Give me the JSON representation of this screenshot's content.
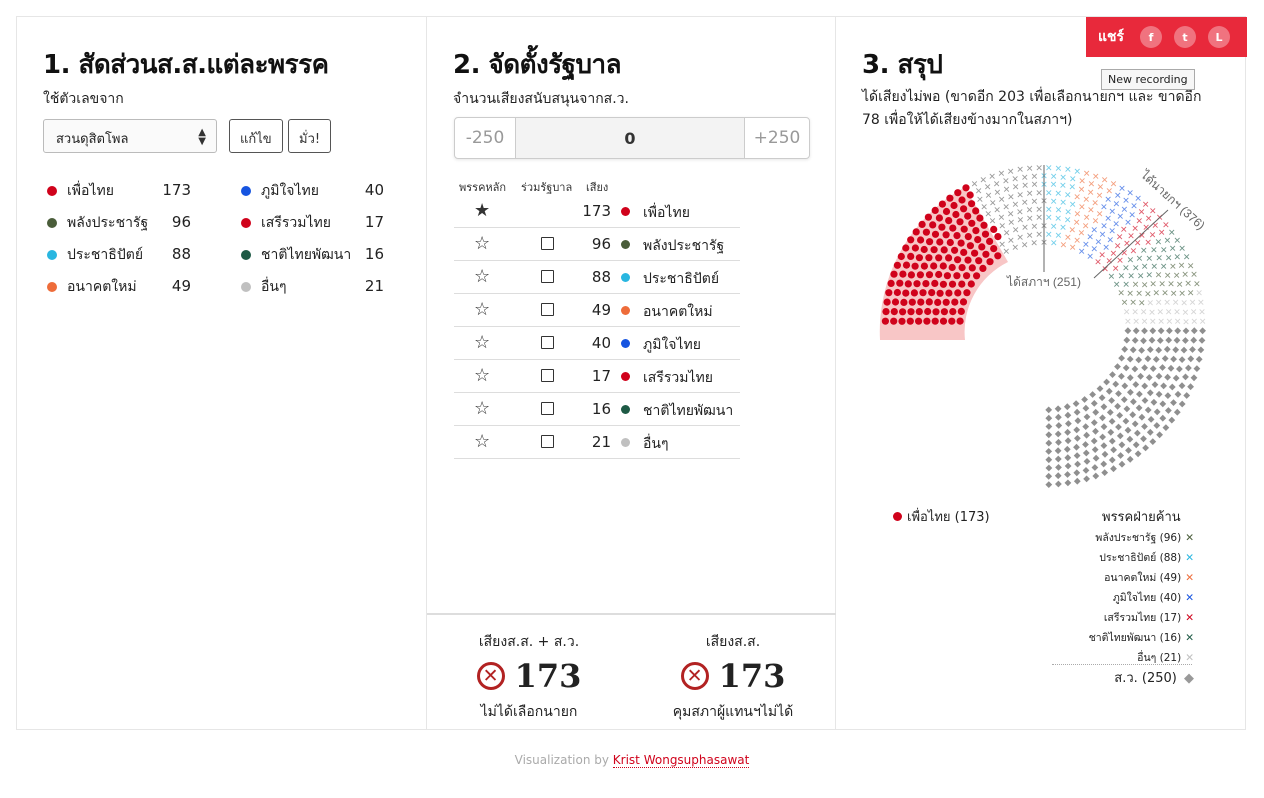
{
  "col1": {
    "title": "1. สัดส่วนส.ส.แต่ละพรรค",
    "subtitle": "ใช้ตัวเลขจาก",
    "select_value": "สวนดุสิตโพล",
    "edit_button": "แก้ไข",
    "random_button": "มั่ว!",
    "parties": [
      {
        "name": "เพื่อไทย",
        "seats": "173",
        "color": "#d0021b"
      },
      {
        "name": "พลังประชารัฐ",
        "seats": "96",
        "color": "#4a5d3a"
      },
      {
        "name": "ประชาธิปัตย์",
        "seats": "88",
        "color": "#29b6e0"
      },
      {
        "name": "อนาคตใหม่",
        "seats": "49",
        "color": "#ee6c3a"
      },
      {
        "name": "ภูมิใจไทย",
        "seats": "40",
        "color": "#1654e0"
      },
      {
        "name": "เสรีรวมไทย",
        "seats": "17",
        "color": "#d0021b"
      },
      {
        "name": "ชาติไทยพัฒนา",
        "seats": "16",
        "color": "#1e5a45"
      },
      {
        "name": "อื่นๆ",
        "seats": "21",
        "color": "#c0c0c0"
      }
    ]
  },
  "col2": {
    "title": "2. จัดตั้งรัฐบาล",
    "subtitle": "จำนวนเสียงสนับสนุนจากส.ว.",
    "stepper": {
      "minus": "-250",
      "value": "0",
      "plus": "+250"
    },
    "headers": {
      "main": "พรรคหลัก",
      "coalition": "ร่วมรัฐบาล",
      "votes": "เสียง"
    },
    "rows": [
      {
        "num": "173",
        "name": "เพื่อไทย",
        "color": "#d0021b",
        "main": true
      },
      {
        "num": "96",
        "name": "พลังประชารัฐ",
        "color": "#4a5d3a",
        "main": false
      },
      {
        "num": "88",
        "name": "ประชาธิปัตย์",
        "color": "#29b6e0",
        "main": false
      },
      {
        "num": "49",
        "name": "อนาคตใหม่",
        "color": "#ee6c3a",
        "main": false
      },
      {
        "num": "40",
        "name": "ภูมิใจไทย",
        "color": "#1654e0",
        "main": false
      },
      {
        "num": "17",
        "name": "เสรีรวมไทย",
        "color": "#d0021b",
        "main": false
      },
      {
        "num": "16",
        "name": "ชาติไทยพัฒนา",
        "color": "#1e5a45",
        "main": false
      },
      {
        "num": "21",
        "name": "อื่นๆ",
        "color": "#c0c0c0",
        "main": false
      }
    ],
    "bottom": {
      "left": {
        "title": "เสียงส.ส. + ส.ว.",
        "value": "173",
        "status": "ไม่ได้เลือกนายก"
      },
      "right": {
        "title": "เสียงส.ส.",
        "value": "173",
        "status": "คุมสภาผู้แทนฯไม่ได้"
      }
    }
  },
  "col3": {
    "title": "3. สรุป",
    "summary": "ได้เสียงไม่พอ (ขาดอีก 203 เพื่อเลือกนายกฯ และ ขาดอีก 78 เพื่อให้ได้เสียงข้างมากในสภาฯ)",
    "label_house": "ได้สภาฯ (251)",
    "label_pm": "ได้นายกฯ (376)",
    "legend_gov": "เพื่อไทย (173)",
    "opp_title": "พรรคฝ่ายค้าน",
    "opp": [
      {
        "label": "พลังประชารัฐ (96)",
        "color": "#4a5d3a"
      },
      {
        "label": "ประชาธิปัตย์ (88)",
        "color": "#29b6e0"
      },
      {
        "label": "อนาคตใหม่ (49)",
        "color": "#ee6c3a"
      },
      {
        "label": "ภูมิใจไทย (40)",
        "color": "#1654e0"
      },
      {
        "label": "เสรีรวมไทย (17)",
        "color": "#d0021b"
      },
      {
        "label": "ชาติไทยพัฒนา (16)",
        "color": "#1e5a45"
      },
      {
        "label": "อื่นๆ (21)",
        "color": "#c0c0c0"
      }
    ],
    "senate": "ส.ว. (250)"
  },
  "share": {
    "label": "แชร์",
    "fb": "f",
    "tw": "t",
    "line": "L"
  },
  "tooltip": "New recording",
  "footer": {
    "prefix": "Visualization by ",
    "author": "Krist Wongsuphasawat"
  }
}
